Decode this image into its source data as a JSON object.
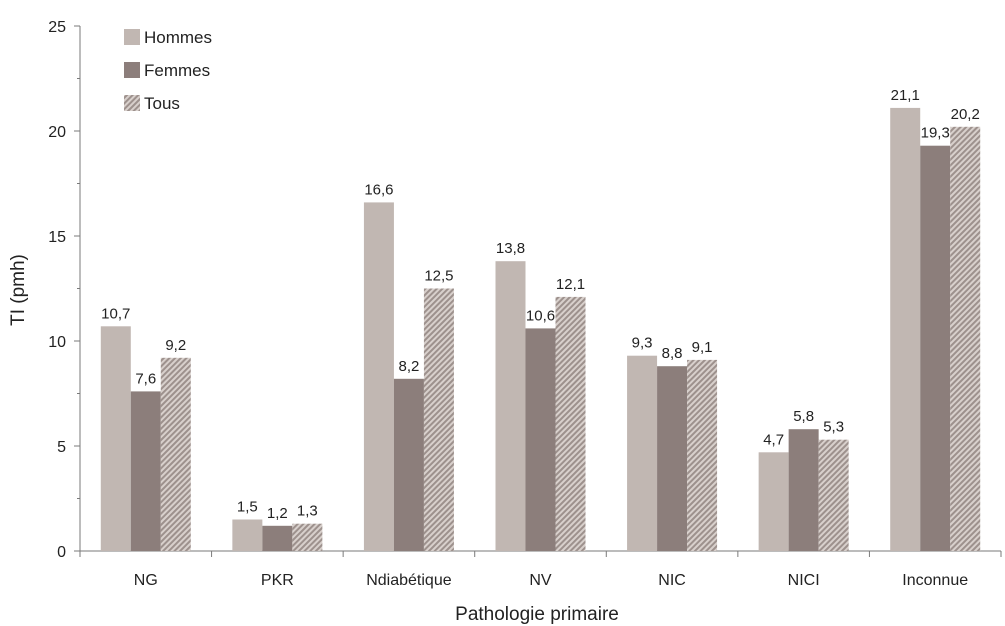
{
  "chart_data": {
    "type": "bar",
    "title": "",
    "xlabel": "Pathologie primaire",
    "ylabel": "TI (pmh)",
    "ylim": [
      0,
      25
    ],
    "yticks": [
      0,
      5,
      10,
      15,
      20,
      25
    ],
    "grid": false,
    "legend_position": "top-left",
    "categories": [
      "NG",
      "PKR",
      "Ndiabétique",
      "NV",
      "NIC",
      "NICI",
      "Inconnue"
    ],
    "series": [
      {
        "name": "Hommes",
        "color": "#c1b7b2",
        "pattern": "solid",
        "values": [
          10.7,
          1.5,
          16.6,
          13.8,
          9.3,
          4.7,
          21.1
        ],
        "labels": [
          "10,7",
          "1,5",
          "16,6",
          "13,8",
          "9,3",
          "4,7",
          "21,1"
        ]
      },
      {
        "name": "Femmes",
        "color": "#8c7e7b",
        "pattern": "solid",
        "values": [
          7.6,
          1.2,
          8.2,
          10.6,
          8.8,
          5.8,
          19.3
        ],
        "labels": [
          "7,6",
          "1,2",
          "8,2",
          "10,6",
          "8,8",
          "5,8",
          "19,3"
        ]
      },
      {
        "name": "Tous",
        "color": "#b1a5a1",
        "pattern": "diagonal-hatch",
        "values": [
          9.2,
          1.3,
          12.5,
          12.1,
          9.1,
          5.3,
          20.2
        ],
        "labels": [
          "9,2",
          "1,3",
          "12,5",
          "12,1",
          "9,1",
          "5,3",
          "20,2"
        ]
      }
    ]
  }
}
